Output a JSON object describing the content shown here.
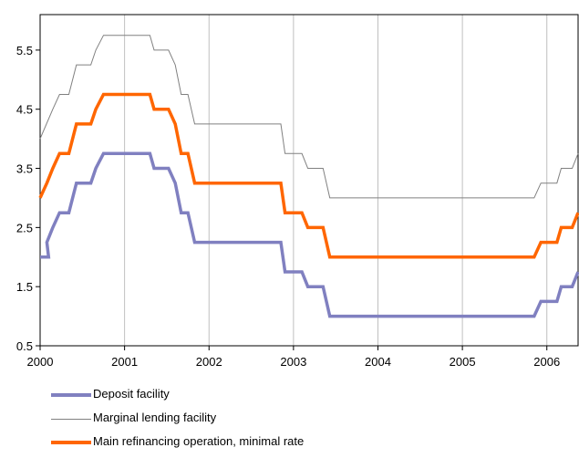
{
  "chart_data": {
    "type": "line",
    "title": "",
    "xlabel": "",
    "ylabel": "",
    "xlim": [
      2000,
      2006.37
    ],
    "ylim": [
      0.5,
      6.1
    ],
    "xticks": [
      "2000",
      "2001",
      "2002",
      "2003",
      "2004",
      "2005",
      "2006"
    ],
    "yticks": [
      "0.5",
      "1.5",
      "2.5",
      "3.5",
      "4.5",
      "5.5"
    ],
    "grid": "vertical",
    "legend_position": "bottom-left",
    "series": [
      {
        "name": "Deposit facility",
        "color": "#8080c0",
        "points": [
          [
            2000.0,
            2.0
          ],
          [
            2000.1,
            2.0
          ],
          [
            2000.08,
            2.25
          ],
          [
            2000.15,
            2.5
          ],
          [
            2000.23,
            2.75
          ],
          [
            2000.34,
            2.75
          ],
          [
            2000.43,
            3.25
          ],
          [
            2000.6,
            3.25
          ],
          [
            2000.66,
            3.5
          ],
          [
            2000.75,
            3.75
          ],
          [
            2001.3,
            3.75
          ],
          [
            2001.35,
            3.5
          ],
          [
            2001.52,
            3.5
          ],
          [
            2001.6,
            3.25
          ],
          [
            2001.67,
            2.75
          ],
          [
            2001.75,
            2.75
          ],
          [
            2001.83,
            2.25
          ],
          [
            2002.85,
            2.25
          ],
          [
            2002.9,
            1.75
          ],
          [
            2003.1,
            1.75
          ],
          [
            2003.17,
            1.5
          ],
          [
            2003.35,
            1.5
          ],
          [
            2003.43,
            1.0
          ],
          [
            2005.85,
            1.0
          ],
          [
            2005.93,
            1.25
          ],
          [
            2006.12,
            1.25
          ],
          [
            2006.17,
            1.5
          ],
          [
            2006.3,
            1.5
          ],
          [
            2006.37,
            1.75
          ]
        ]
      },
      {
        "name": "Marginal lending facility",
        "color": "#808080",
        "points": [
          [
            2000.0,
            4.0
          ],
          [
            2000.15,
            4.5
          ],
          [
            2000.23,
            4.75
          ],
          [
            2000.34,
            4.75
          ],
          [
            2000.43,
            5.25
          ],
          [
            2000.6,
            5.25
          ],
          [
            2000.66,
            5.5
          ],
          [
            2000.75,
            5.75
          ],
          [
            2001.3,
            5.75
          ],
          [
            2001.35,
            5.5
          ],
          [
            2001.52,
            5.5
          ],
          [
            2001.6,
            5.25
          ],
          [
            2001.67,
            4.75
          ],
          [
            2001.75,
            4.75
          ],
          [
            2001.83,
            4.25
          ],
          [
            2002.85,
            4.25
          ],
          [
            2002.9,
            3.75
          ],
          [
            2003.1,
            3.75
          ],
          [
            2003.17,
            3.5
          ],
          [
            2003.35,
            3.5
          ],
          [
            2003.43,
            3.0
          ],
          [
            2005.85,
            3.0
          ],
          [
            2005.93,
            3.25
          ],
          [
            2006.12,
            3.25
          ],
          [
            2006.17,
            3.5
          ],
          [
            2006.3,
            3.5
          ],
          [
            2006.37,
            3.75
          ]
        ]
      },
      {
        "name": "Main refinancing operation, minimal rate",
        "color": "#ff6600",
        "points": [
          [
            2000.0,
            3.0
          ],
          [
            2000.08,
            3.25
          ],
          [
            2000.15,
            3.5
          ],
          [
            2000.23,
            3.75
          ],
          [
            2000.34,
            3.75
          ],
          [
            2000.43,
            4.25
          ],
          [
            2000.6,
            4.25
          ],
          [
            2000.66,
            4.5
          ],
          [
            2000.75,
            4.75
          ],
          [
            2001.3,
            4.75
          ],
          [
            2001.35,
            4.5
          ],
          [
            2001.52,
            4.5
          ],
          [
            2001.6,
            4.25
          ],
          [
            2001.67,
            3.75
          ],
          [
            2001.75,
            3.75
          ],
          [
            2001.83,
            3.25
          ],
          [
            2002.85,
            3.25
          ],
          [
            2002.9,
            2.75
          ],
          [
            2003.1,
            2.75
          ],
          [
            2003.17,
            2.5
          ],
          [
            2003.35,
            2.5
          ],
          [
            2003.43,
            2.0
          ],
          [
            2005.85,
            2.0
          ],
          [
            2005.93,
            2.25
          ],
          [
            2006.12,
            2.25
          ],
          [
            2006.17,
            2.5
          ],
          [
            2006.3,
            2.5
          ],
          [
            2006.37,
            2.75
          ]
        ]
      }
    ]
  }
}
